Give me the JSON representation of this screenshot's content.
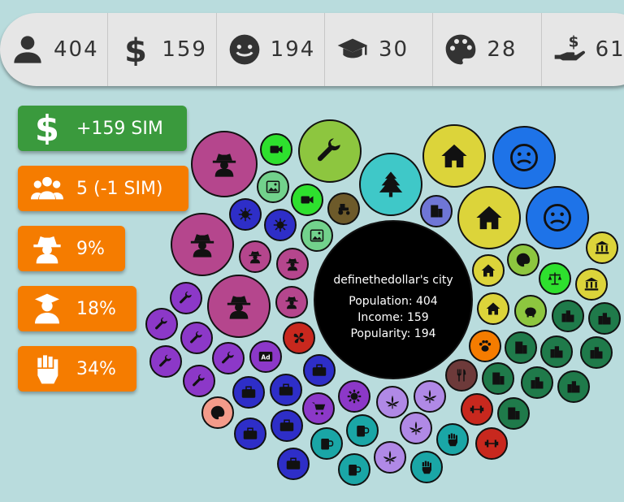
{
  "topbar": {
    "stats": [
      {
        "icon": "person-icon",
        "value": "404"
      },
      {
        "icon": "dollar-icon",
        "value": "159"
      },
      {
        "icon": "smiley-icon",
        "value": "194"
      },
      {
        "icon": "graduation-cap-icon",
        "value": "30"
      },
      {
        "icon": "palette-icon",
        "value": "28"
      },
      {
        "icon": "hand-money-icon",
        "value": "61"
      }
    ]
  },
  "side": {
    "income": "+159 SIM",
    "people": "5 (-1 SIM)",
    "crime": "9%",
    "education": "18%",
    "protest": "34%"
  },
  "center": {
    "city_name": "definethedollar's city",
    "population": "Population: 404",
    "income": "Income: 159",
    "popularity": "Popularity: 194"
  },
  "colors": {
    "magenta": "#b5468d",
    "green": "#2ee02e",
    "lime": "#8dc63f",
    "cyan": "#3fc8c8",
    "yellow": "#dcd43a",
    "blue": "#1e73e8",
    "navy": "#2e2ec8",
    "purple": "#8c38c8",
    "violet": "#b089e6",
    "teal": "#1aa6a6",
    "darkgreen": "#1f7a4a",
    "red": "#c8281e",
    "brown": "#6d5a2a",
    "salmon": "#f39b8a",
    "orange": "#f57c00"
  }
}
